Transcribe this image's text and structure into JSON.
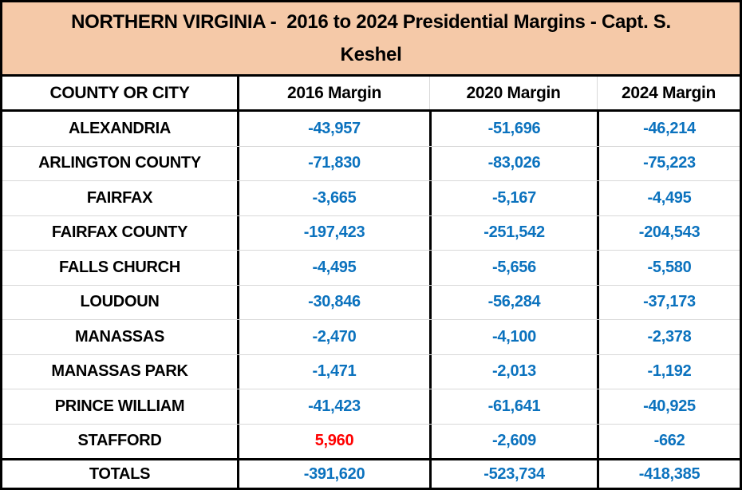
{
  "title": {
    "line1": "NORTHERN VIRGINIA -  2016 to 2024 Presidential Margins - Capt. S.",
    "line2": "Keshel",
    "full": "NORTHERN VIRGINIA -  2016 to 2024 Presidential Margins - Capt. S. Keshel"
  },
  "colors": {
    "title_background": "#F5C9A8",
    "negative_margin_text": "#0B72BE",
    "positive_margin_text": "#FF0000",
    "table_border": "#000000",
    "row_divider": "#D8D8D8"
  },
  "chart_data": {
    "type": "table",
    "title": "NORTHERN VIRGINIA - 2016 to 2024 Presidential Margins - Capt. S. Keshel",
    "columns": [
      "COUNTY OR CITY",
      "2016 Margin",
      "2020 Margin",
      "2024 Margin"
    ],
    "rows": [
      {
        "county": "ALEXANDRIA",
        "margins": [
          "-43,957",
          "-51,696",
          "-46,214"
        ],
        "values": [
          -43957,
          -51696,
          -46214
        ]
      },
      {
        "county": "ARLINGTON COUNTY",
        "margins": [
          "-71,830",
          "-83,026",
          "-75,223"
        ],
        "values": [
          -71830,
          -83026,
          -75223
        ]
      },
      {
        "county": "FAIRFAX",
        "margins": [
          "-3,665",
          "-5,167",
          "-4,495"
        ],
        "values": [
          -3665,
          -5167,
          -4495
        ]
      },
      {
        "county": "FAIRFAX COUNTY",
        "margins": [
          "-197,423",
          "-251,542",
          "-204,543"
        ],
        "values": [
          -197423,
          -251542,
          -204543
        ]
      },
      {
        "county": "FALLS CHURCH",
        "margins": [
          "-4,495",
          "-5,656",
          "-5,580"
        ],
        "values": [
          -4495,
          -5656,
          -5580
        ]
      },
      {
        "county": "LOUDOUN",
        "margins": [
          "-30,846",
          "-56,284",
          "-37,173"
        ],
        "values": [
          -30846,
          -56284,
          -37173
        ]
      },
      {
        "county": "MANASSAS",
        "margins": [
          "-2,470",
          "-4,100",
          "-2,378"
        ],
        "values": [
          -2470,
          -4100,
          -2378
        ]
      },
      {
        "county": "MANASSAS PARK",
        "margins": [
          "-1,471",
          "-2,013",
          "-1,192"
        ],
        "values": [
          -1471,
          -2013,
          -1192
        ]
      },
      {
        "county": "PRINCE WILLIAM",
        "margins": [
          "-41,423",
          "-61,641",
          "-40,925"
        ],
        "values": [
          -41423,
          -61641,
          -40925
        ]
      },
      {
        "county": "STAFFORD",
        "margins": [
          "5,960",
          "-2,609",
          "-662"
        ],
        "values": [
          5960,
          -2609,
          -662
        ]
      }
    ],
    "totals": {
      "county": "TOTALS",
      "margins": [
        "-391,620",
        "-523,734",
        "-418,385"
      ],
      "values": [
        -391620,
        -523734,
        -418385
      ]
    },
    "value_color_rule": {
      "negative": "#0B72BE",
      "positive": "#FF0000"
    },
    "layout": {
      "grid": "thick black outer/column borders, thin gray row dividers",
      "header_background": "#FFFFFF"
    }
  }
}
